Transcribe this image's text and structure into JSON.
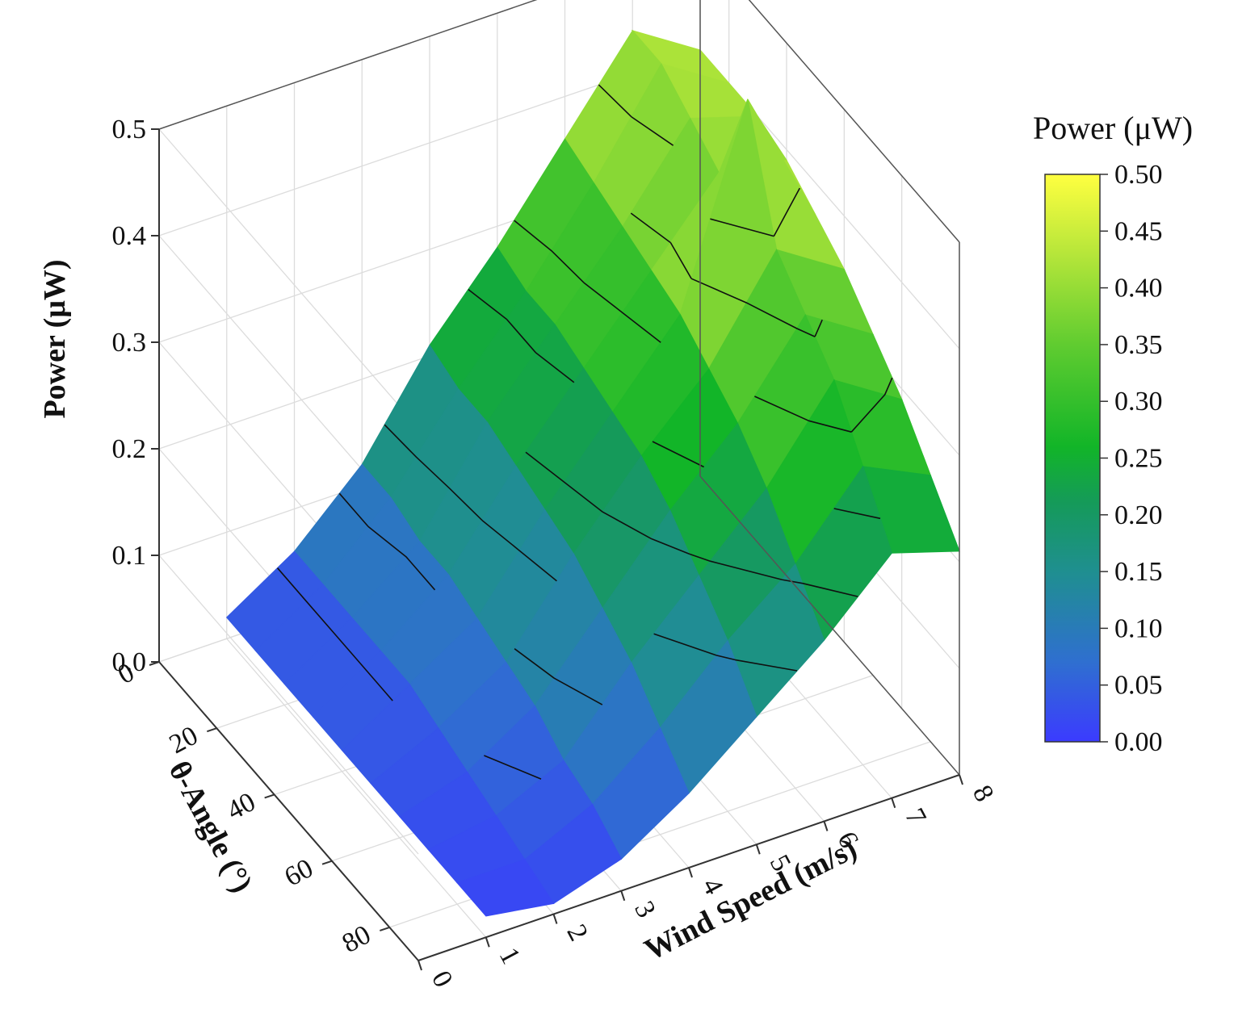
{
  "chart_data": {
    "type": "surface3d",
    "title": "",
    "x_axis": {
      "label": "Wind Speed (m/s)",
      "range": [
        0,
        8
      ],
      "ticks": [
        "0",
        "1",
        "2",
        "3",
        "4",
        "5",
        "6",
        "7",
        "8"
      ]
    },
    "y_axis": {
      "label": "θ-Angle (°)",
      "range": [
        0,
        90
      ],
      "ticks": [
        "0",
        "20",
        "40",
        "60",
        "80"
      ]
    },
    "z_axis": {
      "label": "Power (μW)",
      "range": [
        0,
        0.5
      ],
      "ticks": [
        "0.0",
        "0.1",
        "0.2",
        "0.3",
        "0.4",
        "0.5"
      ]
    },
    "wind_speed": [
      1,
      2,
      3,
      4,
      5,
      6,
      7,
      8
    ],
    "angle": [
      0,
      10,
      20,
      30,
      40,
      50,
      60,
      70,
      80,
      90
    ],
    "power": [
      [
        0.02,
        0.02,
        0.02,
        0.02,
        0.02,
        0.02,
        0.02,
        0.02,
        0.02,
        0.02
      ],
      [
        0.06,
        0.06,
        0.06,
        0.06,
        0.06,
        0.05,
        0.04,
        0.03,
        0.02,
        0.01
      ],
      [
        0.12,
        0.12,
        0.11,
        0.11,
        0.1,
        0.09,
        0.08,
        0.06,
        0.05,
        0.03
      ],
      [
        0.21,
        0.2,
        0.2,
        0.19,
        0.18,
        0.17,
        0.15,
        0.13,
        0.1,
        0.07
      ],
      [
        0.28,
        0.27,
        0.27,
        0.26,
        0.25,
        0.24,
        0.22,
        0.19,
        0.16,
        0.12
      ],
      [
        0.36,
        0.35,
        0.34,
        0.33,
        0.32,
        0.3,
        0.28,
        0.25,
        0.21,
        0.17
      ],
      [
        0.44,
        0.44,
        0.42,
        0.4,
        0.5,
        0.39,
        0.36,
        0.33,
        0.28,
        0.23
      ],
      [
        0.4,
        0.4,
        0.4,
        0.39,
        0.37,
        0.35,
        0.32,
        0.29,
        0.25,
        0.21
      ]
    ],
    "contour_levels": [
      0.05,
      0.1,
      0.15,
      0.2,
      0.25,
      0.3,
      0.35,
      0.4
    ],
    "colorbar": {
      "title": "Power (μW)",
      "range": [
        0,
        0.5
      ],
      "ticks": [
        "0.00",
        "0.05",
        "0.10",
        "0.15",
        "0.20",
        "0.25",
        "0.30",
        "0.35",
        "0.40",
        "0.45",
        "0.50"
      ],
      "colors": [
        "#3b3bff",
        "#2f6fd0",
        "#1f8f90",
        "#159a5a",
        "#12b528",
        "#60cc30",
        "#b6e63a",
        "#ffff40"
      ]
    },
    "grid": true
  }
}
